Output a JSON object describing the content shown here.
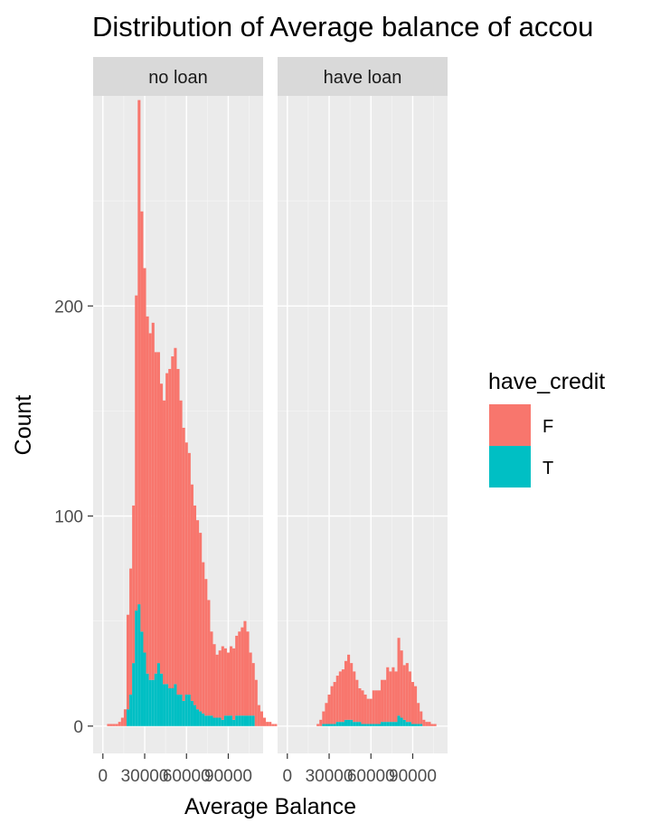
{
  "chart_data": {
    "type": "histogram",
    "title": "Distribution of Average balance of accou",
    "xlabel": "Average Balance",
    "ylabel": "Count",
    "facets": [
      "no loan",
      "have loan"
    ],
    "x_ticks": [
      0,
      30000,
      60000,
      90000
    ],
    "x_tick_labels": [
      "0",
      "30000",
      "60000",
      "90000"
    ],
    "xlim": [
      -7000,
      115000
    ],
    "y_ticks": [
      0,
      100,
      200
    ],
    "ylim": [
      -13,
      300
    ],
    "grid": true,
    "stacked": true,
    "legend": {
      "title": "have_credit",
      "position": "right",
      "entries": [
        {
          "label": "F",
          "color": "#F8766D"
        },
        {
          "label": "T",
          "color": "#00BFC4"
        }
      ]
    },
    "bin_start": -1000,
    "bin_width": 2000,
    "series": [
      {
        "name": "F",
        "color": "#F8766D",
        "facet": "no loan",
        "values": [
          0,
          0,
          1,
          1,
          1,
          1,
          2,
          4,
          8,
          45,
          60,
          75,
          150,
          240,
          200,
          183,
          170,
          165,
          170,
          153,
          148,
          138,
          135,
          148,
          152,
          158,
          160,
          155,
          140,
          130,
          120,
          115,
          103,
          95,
          90,
          85,
          72,
          65,
          55,
          40,
          35,
          30,
          32,
          35,
          32,
          30,
          33,
          34,
          38,
          40,
          42,
          45,
          40,
          30,
          25,
          22,
          10,
          7,
          4,
          2,
          2,
          1,
          1
        ]
      },
      {
        "name": "T",
        "color": "#00BFC4",
        "facet": "no loan",
        "values": [
          0,
          0,
          0,
          0,
          0,
          0,
          0,
          0,
          0,
          8,
          15,
          30,
          55,
          58,
          45,
          35,
          25,
          22,
          22,
          25,
          30,
          25,
          20,
          20,
          18,
          18,
          20,
          15,
          15,
          12,
          15,
          15,
          12,
          10,
          8,
          7,
          6,
          5,
          5,
          5,
          4,
          4,
          4,
          3,
          5,
          5,
          5,
          3,
          5,
          5,
          5,
          5,
          5,
          5,
          5,
          0,
          0,
          0,
          0,
          0,
          0,
          0,
          0
        ]
      },
      {
        "name": "F",
        "color": "#F8766D",
        "facet": "have loan",
        "values": [
          0,
          0,
          0,
          0,
          0,
          0,
          0,
          0,
          0,
          0,
          0,
          1,
          3,
          6,
          10,
          14,
          18,
          20,
          22,
          24,
          25,
          28,
          31,
          27,
          24,
          20,
          16,
          16,
          14,
          12,
          12,
          16,
          16,
          16,
          20,
          20,
          26,
          24,
          26,
          24,
          37,
          32,
          26,
          28,
          24,
          20,
          18,
          10,
          6,
          3,
          2,
          2,
          1,
          1,
          0,
          0,
          0,
          0,
          0,
          0,
          0,
          0,
          0
        ]
      },
      {
        "name": "T",
        "color": "#00BFC4",
        "facet": "have loan",
        "values": [
          0,
          0,
          0,
          0,
          0,
          0,
          0,
          0,
          0,
          0,
          0,
          0,
          0,
          1,
          1,
          1,
          1,
          1,
          2,
          2,
          2,
          3,
          3,
          3,
          2,
          2,
          2,
          1,
          1,
          1,
          1,
          1,
          1,
          1,
          2,
          2,
          2,
          2,
          2,
          2,
          5,
          4,
          3,
          2,
          2,
          1,
          1,
          1,
          1,
          0,
          0,
          0,
          0,
          0,
          0,
          0,
          0,
          0,
          0,
          0,
          0,
          0,
          0
        ]
      }
    ]
  }
}
